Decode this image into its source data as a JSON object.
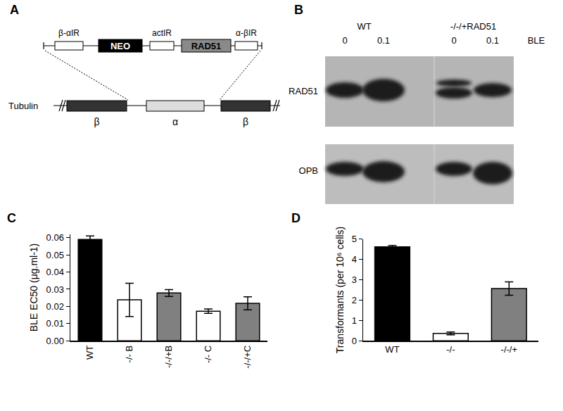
{
  "panels": {
    "A": {
      "label": "A",
      "construct": [
        "β-αIR",
        "NEO",
        "actIR",
        "RAD51",
        "α-βIR"
      ],
      "locus": {
        "label": "Tubulin",
        "genes": [
          "β",
          "α",
          "β"
        ]
      }
    },
    "B": {
      "label": "B",
      "groups": [
        "WT",
        "-/-/+RAD51"
      ],
      "doses": [
        "0",
        "0.1",
        "0",
        "0.1"
      ],
      "dose_label": "BLE",
      "rows": [
        "RAD51",
        "OPB"
      ]
    }
  },
  "chart_data": [
    {
      "type": "bar",
      "title": "C",
      "categories": [
        "WT",
        "-/- B",
        "-/-/+B",
        "-/- C",
        "-/-/+C"
      ],
      "values": [
        0.059,
        0.0238,
        0.0278,
        0.0172,
        0.0218
      ],
      "errors": [
        0.002,
        0.0097,
        0.002,
        0.0013,
        0.0038
      ],
      "colors": [
        "#000000",
        "#ffffff",
        "#808080",
        "#ffffff",
        "#808080"
      ],
      "y_label": "BLE EC50 (μg.ml-1)",
      "ylim": [
        0,
        0.062
      ],
      "yticks": [
        {
          "value": 0,
          "label": "0.00"
        },
        {
          "value": 0.01,
          "label": "0.01"
        },
        {
          "value": 0.02,
          "label": "0.02"
        },
        {
          "value": 0.03,
          "label": "0.03"
        },
        {
          "value": 0.04,
          "label": "0.04"
        },
        {
          "value": 0.05,
          "label": "0.05"
        },
        {
          "value": 0.06,
          "label": "0.06"
        }
      ],
      "grid": false
    },
    {
      "type": "bar",
      "title": "D",
      "categories": [
        "WT",
        "-/-",
        "-/-/+"
      ],
      "values": [
        4.62,
        0.36,
        2.57
      ],
      "errors": [
        0.07,
        0.07,
        0.33
      ],
      "colors": [
        "#000000",
        "#ffffff",
        "#808080"
      ],
      "y_label": "Transformants (per 10⁶ cells)",
      "ylim": [
        0,
        5
      ],
      "yticks": [
        0,
        1,
        2,
        3,
        4,
        5
      ],
      "grid": false
    }
  ]
}
